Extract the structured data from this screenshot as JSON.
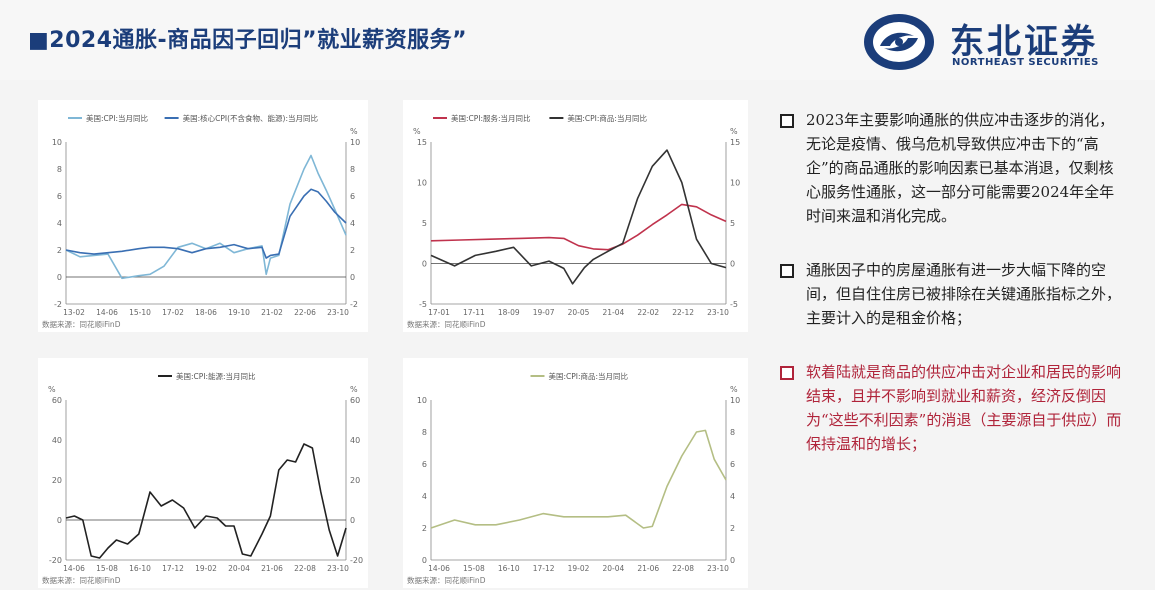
{
  "page": {
    "title": "■2024通胀-商品因子回归”就业薪资服务”",
    "logo_cn": "东北证券",
    "logo_en": "NORTHEAST SECURITIES"
  },
  "bullets": [
    {
      "text": "2023年主要影响通胀的供应冲击逐步的消化，无论是疫情、俄乌危机导致供应冲击下的“高企”的商品通胀的影响因素已基本消退，仅剩核心服务性通胀，这一部分可能需要2024年全年时间来温和消化完成。",
      "color": "#222222"
    },
    {
      "text": "通胀因子中的房屋通胀有进一步大幅下降的空间，但自住住房已被排除在关键通胀指标之外，主要计入的是租金价格；",
      "color": "#222222"
    },
    {
      "text": "软着陆就是商品的供应冲击对企业和居民的影响结束，且并不影响到就业和薪资，经济反倒因为“这些不利因素”的消退（主要源自于供应）而保持温和的增长；",
      "color": "#b0243a"
    }
  ],
  "chart_data": [
    {
      "type": "line",
      "legend": [
        "美国:CPI:当月同比",
        "美国:核心CPI(不含食物、能源):当月同比"
      ],
      "unit_left": "",
      "unit_right": "%",
      "x_ticks": [
        "13-02",
        "14-06",
        "15-10",
        "17-02",
        "18-06",
        "19-10",
        "21-02",
        "22-06",
        "23-10"
      ],
      "ylim_left": [
        -2,
        10
      ],
      "y_ticks_left": [
        -2,
        0,
        2,
        4,
        6,
        8,
        10
      ],
      "ylim_right": [
        -2,
        10
      ],
      "y_ticks_right": [
        -2,
        0,
        2,
        4,
        6,
        8,
        10
      ],
      "source": "数据来源：同花顺iFinD",
      "series": [
        {
          "name": "美国:CPI:当月同比",
          "color": "#7fb7d6",
          "axis": "left",
          "x": [
            0,
            0.05,
            0.1,
            0.15,
            0.2,
            0.26,
            0.3,
            0.35,
            0.4,
            0.45,
            0.5,
            0.55,
            0.6,
            0.65,
            0.7,
            0.715,
            0.73,
            0.76,
            0.8,
            0.85,
            0.875,
            0.9,
            0.93,
            0.96,
            1.0
          ],
          "values": [
            2.0,
            1.5,
            1.6,
            1.7,
            -0.1,
            0.1,
            0.2,
            0.8,
            2.2,
            2.5,
            2.1,
            2.5,
            1.8,
            2.1,
            2.3,
            0.2,
            1.4,
            1.6,
            5.4,
            8.0,
            9.0,
            7.7,
            6.4,
            5.0,
            3.1
          ]
        },
        {
          "name": "美国:核心CPI(不含食物、能源):当月同比",
          "color": "#3a6fb3",
          "axis": "left",
          "x": [
            0,
            0.05,
            0.1,
            0.15,
            0.2,
            0.26,
            0.3,
            0.35,
            0.4,
            0.45,
            0.5,
            0.55,
            0.6,
            0.65,
            0.7,
            0.715,
            0.73,
            0.76,
            0.8,
            0.85,
            0.875,
            0.9,
            0.93,
            0.96,
            1.0
          ],
          "values": [
            2.0,
            1.8,
            1.7,
            1.8,
            1.9,
            2.1,
            2.2,
            2.2,
            2.1,
            1.8,
            2.1,
            2.2,
            2.4,
            2.1,
            2.2,
            1.4,
            1.6,
            1.7,
            4.5,
            6.0,
            6.5,
            6.3,
            5.6,
            4.8,
            4.0
          ]
        }
      ]
    },
    {
      "type": "line",
      "legend": [
        "美国:CPI:服务:当月同比",
        "美国:CPI:商品:当月同比"
      ],
      "unit_left": "%",
      "unit_right": "%",
      "x_ticks": [
        "17-01",
        "17-11",
        "18-09",
        "19-07",
        "20-05",
        "21-04",
        "22-02",
        "22-12",
        "23-10"
      ],
      "ylim_left": [
        -5,
        15
      ],
      "y_ticks_left": [
        -5,
        0,
        5,
        10,
        15
      ],
      "ylim_right": [
        -5,
        15
      ],
      "y_ticks_right": [
        -5,
        0,
        5,
        10,
        15
      ],
      "source": "数据来源：同花顺iFinD",
      "series": [
        {
          "name": "美国:CPI:服务:当月同比",
          "color": "#c0334d",
          "axis": "left",
          "x": [
            0,
            0.1,
            0.2,
            0.3,
            0.4,
            0.45,
            0.5,
            0.55,
            0.6,
            0.65,
            0.7,
            0.75,
            0.8,
            0.85,
            0.9,
            0.95,
            1.0
          ],
          "values": [
            2.8,
            2.9,
            3.0,
            3.1,
            3.2,
            3.1,
            2.2,
            1.8,
            1.7,
            2.4,
            3.5,
            4.8,
            6.0,
            7.3,
            7.0,
            6.0,
            5.2
          ]
        },
        {
          "name": "美国:CPI:商品:当月同比",
          "color": "#333333",
          "axis": "left",
          "x": [
            0,
            0.08,
            0.15,
            0.22,
            0.28,
            0.34,
            0.4,
            0.45,
            0.48,
            0.52,
            0.55,
            0.6,
            0.65,
            0.7,
            0.75,
            0.8,
            0.85,
            0.9,
            0.95,
            1.0
          ],
          "values": [
            1.0,
            -0.3,
            1.0,
            1.5,
            2.0,
            -0.3,
            0.3,
            -0.6,
            -2.5,
            -0.5,
            0.5,
            1.5,
            2.5,
            8.0,
            12.0,
            14.0,
            10.0,
            3.0,
            0.0,
            -0.5
          ]
        }
      ]
    },
    {
      "type": "line",
      "legend": [
        "美国:CPI:能源:当月同比"
      ],
      "unit_left": "%",
      "unit_right": "%",
      "x_ticks": [
        "14-06",
        "15-08",
        "16-10",
        "17-12",
        "19-02",
        "20-04",
        "21-06",
        "22-08",
        "23-10"
      ],
      "ylim_left": [
        -20,
        60
      ],
      "y_ticks_left": [
        -20,
        0,
        20,
        40,
        60
      ],
      "ylim_right": [
        -20,
        60
      ],
      "y_ticks_right": [
        -20,
        0,
        20,
        40,
        60
      ],
      "source": "数据来源：同花顺iFinD",
      "series": [
        {
          "name": "美国:CPI:能源:当月同比",
          "color": "#222222",
          "axis": "left",
          "x": [
            0,
            0.03,
            0.06,
            0.09,
            0.12,
            0.15,
            0.18,
            0.22,
            0.26,
            0.3,
            0.34,
            0.38,
            0.42,
            0.46,
            0.5,
            0.54,
            0.57,
            0.6,
            0.63,
            0.66,
            0.7,
            0.73,
            0.76,
            0.79,
            0.82,
            0.85,
            0.88,
            0.91,
            0.94,
            0.97,
            1.0
          ],
          "values": [
            1,
            2,
            0,
            -18,
            -19,
            -14,
            -10,
            -12,
            -7,
            14,
            7,
            10,
            6,
            -4,
            2,
            1,
            -3,
            -3,
            -17,
            -18,
            -7,
            2,
            25,
            30,
            29,
            38,
            36,
            14,
            -5,
            -18,
            -4
          ]
        }
      ]
    },
    {
      "type": "line",
      "legend": [
        "美国:CPI:商品:当月同比"
      ],
      "unit_left": "",
      "unit_right": "%",
      "x_ticks": [
        "14-06",
        "15-08",
        "16-10",
        "17-12",
        "19-02",
        "20-04",
        "21-06",
        "22-08",
        "23-10"
      ],
      "ylim_left": [
        0,
        10
      ],
      "y_ticks_left": [
        0,
        2,
        4,
        6,
        8,
        10
      ],
      "ylim_right": [
        0,
        10
      ],
      "y_ticks_right": [
        0,
        2,
        4,
        6,
        8,
        10
      ],
      "source": "数据来源：同花顺iFinD",
      "series": [
        {
          "name": "美国:CPI:商品:当月同比",
          "color": "#b4be84",
          "axis": "left",
          "x": [
            0,
            0.08,
            0.15,
            0.22,
            0.3,
            0.38,
            0.45,
            0.52,
            0.6,
            0.66,
            0.72,
            0.75,
            0.8,
            0.85,
            0.9,
            0.93,
            0.96,
            1.0
          ],
          "values": [
            2.0,
            2.5,
            2.2,
            2.2,
            2.5,
            2.9,
            2.7,
            2.7,
            2.7,
            2.8,
            2.0,
            2.1,
            4.6,
            6.5,
            8.0,
            8.1,
            6.3,
            5.0
          ]
        }
      ]
    }
  ]
}
